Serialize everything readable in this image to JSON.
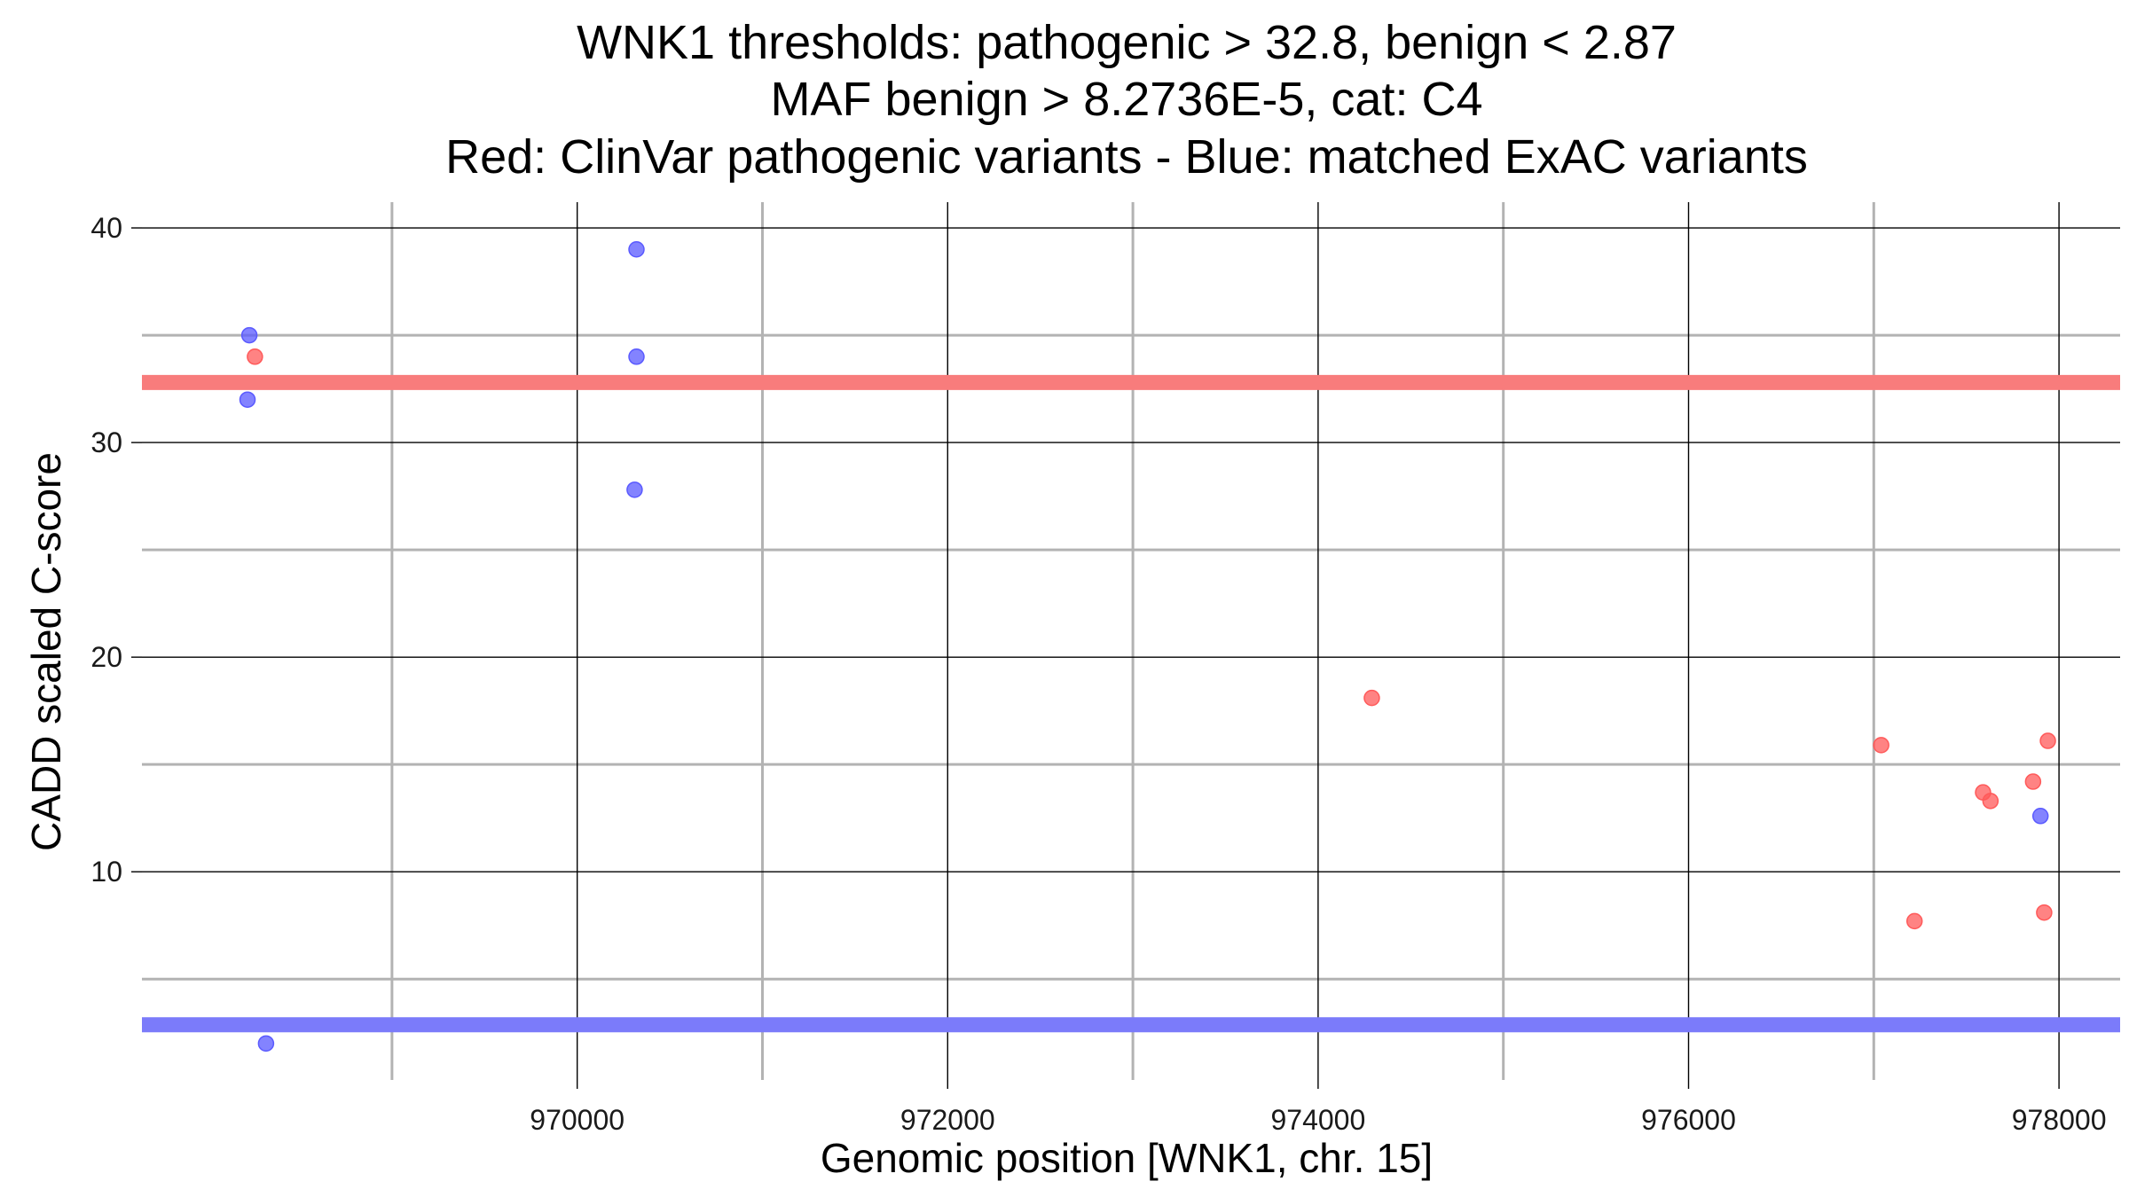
{
  "chart_data": {
    "type": "scatter",
    "title_lines": [
      "WNK1 thresholds: pathogenic > 32.8, benign < 2.87",
      "MAF benign > 8.2736E-5, cat: C4",
      "Red: ClinVar pathogenic variants - Blue: matched ExAC variants"
    ],
    "xlabel": "Genomic position [WNK1, chr. 15]",
    "ylabel": "CADD scaled C-score",
    "xlim": [
      967650,
      978330
    ],
    "ylim": [
      0.3,
      41.2
    ],
    "x_ticks": [
      {
        "value": 970000,
        "label": "970000"
      },
      {
        "value": 972000,
        "label": "972000"
      },
      {
        "value": 974000,
        "label": "974000"
      },
      {
        "value": 976000,
        "label": "976000"
      },
      {
        "value": 978000,
        "label": "978000"
      }
    ],
    "x_minor_gridlines": [
      969000,
      971000,
      973000,
      975000,
      977000
    ],
    "y_ticks": [
      {
        "value": 10,
        "label": "10"
      },
      {
        "value": 20,
        "label": "20"
      },
      {
        "value": 30,
        "label": "30"
      },
      {
        "value": 40,
        "label": "40"
      }
    ],
    "y_minor_gridlines": [
      5,
      15,
      25,
      35
    ],
    "grid": true,
    "thresholds": [
      {
        "name": "pathogenic",
        "value": 32.8,
        "color": "#f87c7c"
      },
      {
        "name": "benign",
        "value": 2.87,
        "color": "#7b7bfa"
      }
    ],
    "series": [
      {
        "color": "#ff5a5a",
        "points": [
          {
            "x": 968260,
            "y": 34.0
          },
          {
            "x": 974290,
            "y": 18.1
          },
          {
            "x": 977040,
            "y": 15.9
          },
          {
            "x": 977220,
            "y": 7.7
          },
          {
            "x": 977590,
            "y": 13.7
          },
          {
            "x": 977630,
            "y": 13.3
          },
          {
            "x": 977860,
            "y": 14.2
          },
          {
            "x": 977920,
            "y": 8.1
          },
          {
            "x": 977940,
            "y": 16.1
          }
        ]
      },
      {
        "color": "#5a5aff",
        "points": [
          {
            "x": 968230,
            "y": 35.0
          },
          {
            "x": 968220,
            "y": 32.0
          },
          {
            "x": 968320,
            "y": 2.0
          },
          {
            "x": 970320,
            "y": 39.0
          },
          {
            "x": 970320,
            "y": 34.0
          },
          {
            "x": 970310,
            "y": 27.8
          },
          {
            "x": 977900,
            "y": 12.6
          }
        ]
      }
    ]
  }
}
